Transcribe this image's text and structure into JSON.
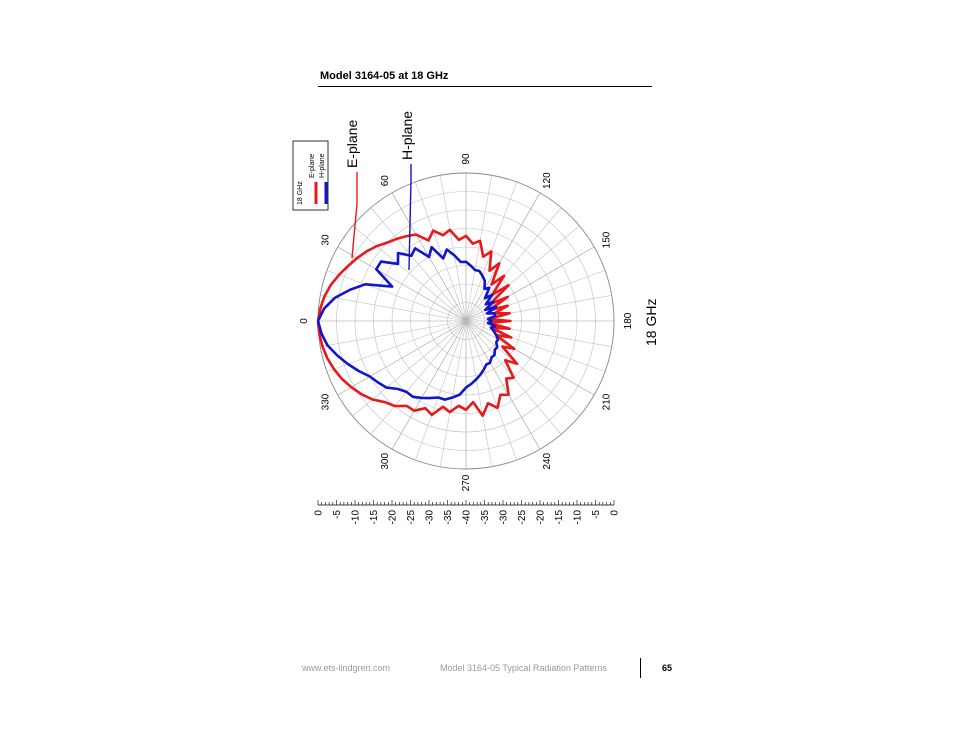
{
  "header": {
    "title": "Model 3164-05 at 18 GHz"
  },
  "footer": {
    "url": "www.ets-lindgren.com",
    "doc": "Model 3164-05 Typical Radiation Patterns",
    "page": "65"
  },
  "colors": {
    "e_plane": "#e8191c",
    "h_plane": "#1414c8",
    "grid": "#c0c0c0"
  },
  "chart_data": {
    "type": "polar",
    "title": "18 GHz",
    "legend": {
      "title": "18 GHz",
      "entries": [
        "E-plane",
        "H-plane"
      ],
      "placement": "top-left"
    },
    "callouts": [
      "E-plane",
      "H-plane"
    ],
    "angle_ticks": [
      "0",
      "30",
      "60",
      "90",
      "120",
      "150",
      "180",
      "210",
      "240",
      "270",
      "300",
      "330"
    ],
    "radial_scale": {
      "min_db": -40,
      "max_db": 0,
      "step_db": 5,
      "labels": [
        "0",
        "-5",
        "-10",
        "-15",
        "-20",
        "-25",
        "-30",
        "-35",
        "-40",
        "-35",
        "-30",
        "-25",
        "-20",
        "-15",
        "-10",
        "-5",
        "0"
      ]
    },
    "series": [
      {
        "name": "E-plane",
        "angles": [
          0,
          5,
          10,
          15,
          20,
          25,
          30,
          35,
          40,
          45,
          50,
          55,
          60,
          65,
          70,
          75,
          80,
          85,
          90,
          95,
          100,
          105,
          110,
          115,
          120,
          125,
          130,
          135,
          140,
          145,
          150,
          155,
          160,
          165,
          170,
          175,
          180,
          185,
          190,
          195,
          200,
          205,
          210,
          215,
          220,
          225,
          230,
          235,
          240,
          245,
          250,
          255,
          260,
          265,
          270,
          275,
          280,
          285,
          290,
          295,
          300,
          305,
          310,
          315,
          320,
          325,
          330,
          335,
          340,
          345,
          350,
          355
        ],
        "values": [
          0,
          -0.5,
          -1.2,
          -2.2,
          -3.5,
          -4.8,
          -6,
          -7.2,
          -8.5,
          -10,
          -11,
          -12,
          -13,
          -16,
          -14,
          -16,
          -15,
          -18,
          -17,
          -19,
          -18,
          -22,
          -20,
          -25,
          -22,
          -28,
          -24,
          -30,
          -25,
          -32,
          -27,
          -33,
          -28,
          -32,
          -28,
          -34,
          -28,
          -34,
          -28,
          -33,
          -27,
          -31,
          -25,
          -28,
          -22,
          -25,
          -20,
          -21,
          -17,
          -18,
          -15,
          -17,
          -14,
          -18,
          -16,
          -17,
          -15,
          -16,
          -13,
          -14,
          -12,
          -12,
          -10,
          -9,
          -7,
          -5.5,
          -4.2,
          -3,
          -2,
          -1.2,
          -0.6,
          -0.2
        ]
      },
      {
        "name": "H-plane",
        "angles": [
          0,
          5,
          10,
          15,
          20,
          25,
          30,
          35,
          40,
          45,
          50,
          55,
          60,
          65,
          70,
          75,
          80,
          85,
          90,
          95,
          100,
          105,
          110,
          115,
          120,
          125,
          130,
          135,
          140,
          145,
          150,
          155,
          160,
          165,
          170,
          175,
          180,
          185,
          190,
          195,
          200,
          205,
          210,
          215,
          220,
          225,
          230,
          235,
          240,
          245,
          250,
          255,
          260,
          265,
          270,
          275,
          280,
          285,
          290,
          295,
          300,
          305,
          310,
          315,
          320,
          325,
          330,
          335,
          340,
          345,
          350,
          355
        ],
        "values": [
          0,
          -1.5,
          -4,
          -7.5,
          -11,
          -18,
          -12,
          -12,
          -16,
          -14,
          -17,
          -16,
          -20,
          -18,
          -22,
          -20,
          -22,
          -24,
          -24,
          -25,
          -26,
          -26,
          -27,
          -28,
          -30,
          -29,
          -32,
          -30,
          -33,
          -31,
          -34,
          -31,
          -34,
          -32,
          -32,
          -34,
          -33,
          -34,
          -32,
          -33,
          -32,
          -31,
          -30,
          -30,
          -29,
          -29,
          -28,
          -28,
          -27,
          -27,
          -26,
          -25,
          -24,
          -23,
          -22,
          -20,
          -19,
          -18,
          -18,
          -17,
          -16,
          -15,
          -15,
          -14,
          -12,
          -11,
          -10,
          -8,
          -6,
          -4,
          -2,
          -0.8
        ]
      }
    ]
  }
}
